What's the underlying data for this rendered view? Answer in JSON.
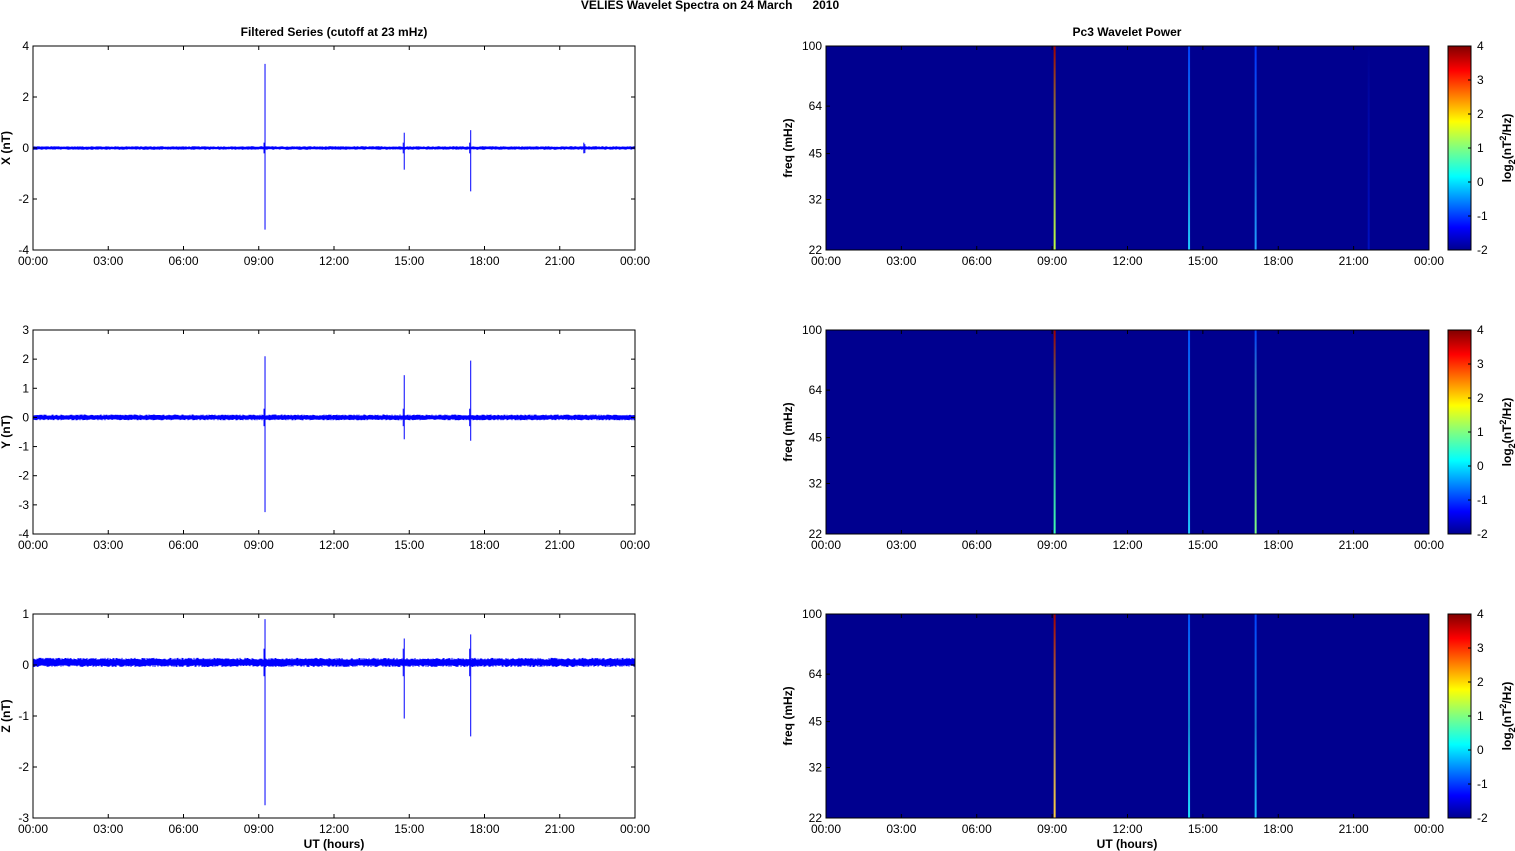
{
  "figure": {
    "title": "VELIES Wavelet Spectra on 24 March      2010",
    "left_title": "Filtered Series (cutoff at 23 mHz)",
    "right_title": "Pc3 Wavelet Power",
    "xlabel": "UT (hours)"
  },
  "chart_data": [
    {
      "type": "line",
      "ylabel": "X (nT)",
      "ylim": [
        -4,
        4
      ],
      "yticks": [
        -4,
        -2,
        0,
        2,
        4
      ],
      "xlim": [
        0,
        24
      ],
      "xticks": [
        "00:00",
        "03:00",
        "06:00",
        "09:00",
        "12:00",
        "15:00",
        "18:00",
        "21:00",
        "00:00"
      ],
      "noise_amplitude": 0.07,
      "baseline": 0,
      "color": "#0000ff",
      "events": [
        {
          "hour": 9.25,
          "max": 3.3,
          "min": -3.2
        },
        {
          "hour": 14.8,
          "max": 0.6,
          "min": -0.85
        },
        {
          "hour": 17.45,
          "max": 0.7,
          "min": -1.7
        },
        {
          "hour": 22.0,
          "max": 0.15,
          "min": -0.2
        }
      ]
    },
    {
      "type": "line",
      "ylabel": "Y (nT)",
      "ylim": [
        -4,
        3
      ],
      "yticks": [
        -4,
        -3,
        -2,
        -1,
        0,
        1,
        2,
        3
      ],
      "xlim": [
        0,
        24
      ],
      "xticks": [
        "00:00",
        "03:00",
        "06:00",
        "09:00",
        "12:00",
        "15:00",
        "18:00",
        "21:00",
        "00:00"
      ],
      "noise_amplitude": 0.1,
      "baseline": 0,
      "color": "#0000ff",
      "events": [
        {
          "hour": 9.25,
          "max": 2.1,
          "min": -3.25
        },
        {
          "hour": 14.8,
          "max": 1.45,
          "min": -0.75
        },
        {
          "hour": 17.45,
          "max": 1.95,
          "min": -0.8
        }
      ]
    },
    {
      "type": "line",
      "ylabel": "Z (nT)",
      "ylim": [
        -3,
        1
      ],
      "yticks": [
        -3,
        -2,
        -1,
        0,
        1
      ],
      "xlim": [
        0,
        24
      ],
      "xticks": [
        "00:00",
        "03:00",
        "06:00",
        "09:00",
        "12:00",
        "15:00",
        "18:00",
        "21:00",
        "00:00"
      ],
      "noise_amplitude": 0.09,
      "baseline": 0.05,
      "color": "#0000ff",
      "events": [
        {
          "hour": 9.25,
          "max": 0.9,
          "min": -2.75
        },
        {
          "hour": 14.8,
          "max": 0.52,
          "min": -1.05
        },
        {
          "hour": 17.45,
          "max": 0.6,
          "min": -1.4
        }
      ]
    },
    {
      "type": "heatmap",
      "ylabel": "freq (mHz)",
      "yscale": "log",
      "ylim": [
        22,
        100
      ],
      "yticks": [
        22,
        32,
        45,
        64,
        100
      ],
      "xlim": [
        0,
        24
      ],
      "xticks": [
        "00:00",
        "03:00",
        "06:00",
        "09:00",
        "12:00",
        "15:00",
        "18:00",
        "21:00",
        "00:00"
      ],
      "background_color": "#00008f",
      "colorbar": {
        "label": "log2(nT^2/Hz)",
        "label_base": "log",
        "label_sub": "2",
        "label_mid": "(nT",
        "label_sup": "2",
        "label_end": "/Hz)",
        "range": [
          -2,
          4
        ],
        "ticks": [
          -2,
          -1,
          0,
          1,
          2,
          3,
          4
        ]
      },
      "streaks": [
        {
          "hour": 9.1,
          "color_low": "#bfff40",
          "color_high": "#a00000"
        },
        {
          "hour": 14.45,
          "color_low": "#20c8ff",
          "color_high": "#0040ff"
        },
        {
          "hour": 17.1,
          "color_low": "#20a0ff",
          "color_high": "#0030ff"
        },
        {
          "hour": 21.6,
          "color_low": "#0010c0",
          "color_high": "#00008f"
        }
      ]
    },
    {
      "type": "heatmap",
      "ylabel": "freq (mHz)",
      "yscale": "log",
      "ylim": [
        22,
        100
      ],
      "yticks": [
        22,
        32,
        45,
        64,
        100
      ],
      "xlim": [
        0,
        24
      ],
      "xticks": [
        "00:00",
        "03:00",
        "06:00",
        "09:00",
        "12:00",
        "15:00",
        "18:00",
        "21:00",
        "00:00"
      ],
      "background_color": "#00008f",
      "colorbar": {
        "label": "log2(nT^2/Hz)",
        "label_base": "log",
        "label_sub": "2",
        "label_mid": "(nT",
        "label_sup": "2",
        "label_end": "/Hz)",
        "range": [
          -2,
          4
        ],
        "ticks": [
          -2,
          -1,
          0,
          1,
          2,
          3,
          4
        ]
      },
      "streaks": [
        {
          "hour": 9.1,
          "color_low": "#40ffb0",
          "color_high": "#a00000"
        },
        {
          "hour": 14.45,
          "color_low": "#20c8ff",
          "color_high": "#0050ff"
        },
        {
          "hour": 17.1,
          "color_low": "#80ff80",
          "color_high": "#0040ff"
        }
      ]
    },
    {
      "type": "heatmap",
      "ylabel": "freq (mHz)",
      "yscale": "log",
      "ylim": [
        22,
        100
      ],
      "yticks": [
        22,
        32,
        45,
        64,
        100
      ],
      "xlim": [
        0,
        24
      ],
      "xticks": [
        "00:00",
        "03:00",
        "06:00",
        "09:00",
        "12:00",
        "15:00",
        "18:00",
        "21:00",
        "00:00"
      ],
      "background_color": "#00008f",
      "colorbar": {
        "label": "log2(nT^2/Hz)",
        "label_base": "log",
        "label_sub": "2",
        "label_mid": "(nT",
        "label_sup": "2",
        "label_end": "/Hz)",
        "range": [
          -2,
          4
        ],
        "ticks": [
          -2,
          -1,
          0,
          1,
          2,
          3,
          4
        ]
      },
      "streaks": [
        {
          "hour": 9.1,
          "color_low": "#ffd040",
          "color_high": "#a00000"
        },
        {
          "hour": 14.45,
          "color_low": "#20e0ff",
          "color_high": "#0050ff"
        },
        {
          "hour": 17.1,
          "color_low": "#20c0ff",
          "color_high": "#0040ff"
        }
      ]
    }
  ]
}
